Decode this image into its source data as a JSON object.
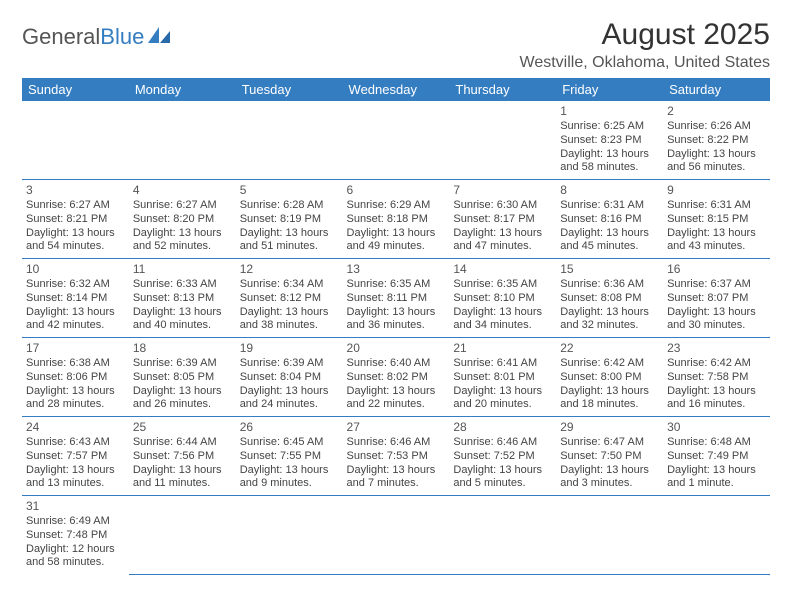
{
  "logo": {
    "text1": "General",
    "text2": "Blue",
    "icon_color": "#347dc1"
  },
  "title": "August 2025",
  "location": "Westville, Oklahoma, United States",
  "header_bg": "#347dc1",
  "header_text_color": "#ffffff",
  "border_color": "#347dc1",
  "weekdays": [
    "Sunday",
    "Monday",
    "Tuesday",
    "Wednesday",
    "Thursday",
    "Friday",
    "Saturday"
  ],
  "weeks": [
    [
      null,
      null,
      null,
      null,
      null,
      {
        "n": "1",
        "sr": "6:25 AM",
        "ss": "8:23 PM",
        "dl": "13 hours and 58 minutes."
      },
      {
        "n": "2",
        "sr": "6:26 AM",
        "ss": "8:22 PM",
        "dl": "13 hours and 56 minutes."
      }
    ],
    [
      {
        "n": "3",
        "sr": "6:27 AM",
        "ss": "8:21 PM",
        "dl": "13 hours and 54 minutes."
      },
      {
        "n": "4",
        "sr": "6:27 AM",
        "ss": "8:20 PM",
        "dl": "13 hours and 52 minutes."
      },
      {
        "n": "5",
        "sr": "6:28 AM",
        "ss": "8:19 PM",
        "dl": "13 hours and 51 minutes."
      },
      {
        "n": "6",
        "sr": "6:29 AM",
        "ss": "8:18 PM",
        "dl": "13 hours and 49 minutes."
      },
      {
        "n": "7",
        "sr": "6:30 AM",
        "ss": "8:17 PM",
        "dl": "13 hours and 47 minutes."
      },
      {
        "n": "8",
        "sr": "6:31 AM",
        "ss": "8:16 PM",
        "dl": "13 hours and 45 minutes."
      },
      {
        "n": "9",
        "sr": "6:31 AM",
        "ss": "8:15 PM",
        "dl": "13 hours and 43 minutes."
      }
    ],
    [
      {
        "n": "10",
        "sr": "6:32 AM",
        "ss": "8:14 PM",
        "dl": "13 hours and 42 minutes."
      },
      {
        "n": "11",
        "sr": "6:33 AM",
        "ss": "8:13 PM",
        "dl": "13 hours and 40 minutes."
      },
      {
        "n": "12",
        "sr": "6:34 AM",
        "ss": "8:12 PM",
        "dl": "13 hours and 38 minutes."
      },
      {
        "n": "13",
        "sr": "6:35 AM",
        "ss": "8:11 PM",
        "dl": "13 hours and 36 minutes."
      },
      {
        "n": "14",
        "sr": "6:35 AM",
        "ss": "8:10 PM",
        "dl": "13 hours and 34 minutes."
      },
      {
        "n": "15",
        "sr": "6:36 AM",
        "ss": "8:08 PM",
        "dl": "13 hours and 32 minutes."
      },
      {
        "n": "16",
        "sr": "6:37 AM",
        "ss": "8:07 PM",
        "dl": "13 hours and 30 minutes."
      }
    ],
    [
      {
        "n": "17",
        "sr": "6:38 AM",
        "ss": "8:06 PM",
        "dl": "13 hours and 28 minutes."
      },
      {
        "n": "18",
        "sr": "6:39 AM",
        "ss": "8:05 PM",
        "dl": "13 hours and 26 minutes."
      },
      {
        "n": "19",
        "sr": "6:39 AM",
        "ss": "8:04 PM",
        "dl": "13 hours and 24 minutes."
      },
      {
        "n": "20",
        "sr": "6:40 AM",
        "ss": "8:02 PM",
        "dl": "13 hours and 22 minutes."
      },
      {
        "n": "21",
        "sr": "6:41 AM",
        "ss": "8:01 PM",
        "dl": "13 hours and 20 minutes."
      },
      {
        "n": "22",
        "sr": "6:42 AM",
        "ss": "8:00 PM",
        "dl": "13 hours and 18 minutes."
      },
      {
        "n": "23",
        "sr": "6:42 AM",
        "ss": "7:58 PM",
        "dl": "13 hours and 16 minutes."
      }
    ],
    [
      {
        "n": "24",
        "sr": "6:43 AM",
        "ss": "7:57 PM",
        "dl": "13 hours and 13 minutes."
      },
      {
        "n": "25",
        "sr": "6:44 AM",
        "ss": "7:56 PM",
        "dl": "13 hours and 11 minutes."
      },
      {
        "n": "26",
        "sr": "6:45 AM",
        "ss": "7:55 PM",
        "dl": "13 hours and 9 minutes."
      },
      {
        "n": "27",
        "sr": "6:46 AM",
        "ss": "7:53 PM",
        "dl": "13 hours and 7 minutes."
      },
      {
        "n": "28",
        "sr": "6:46 AM",
        "ss": "7:52 PM",
        "dl": "13 hours and 5 minutes."
      },
      {
        "n": "29",
        "sr": "6:47 AM",
        "ss": "7:50 PM",
        "dl": "13 hours and 3 minutes."
      },
      {
        "n": "30",
        "sr": "6:48 AM",
        "ss": "7:49 PM",
        "dl": "13 hours and 1 minute."
      }
    ],
    [
      {
        "n": "31",
        "sr": "6:49 AM",
        "ss": "7:48 PM",
        "dl": "12 hours and 58 minutes."
      },
      null,
      null,
      null,
      null,
      null,
      null
    ]
  ],
  "labels": {
    "sunrise": "Sunrise:",
    "sunset": "Sunset:",
    "daylight": "Daylight:"
  }
}
